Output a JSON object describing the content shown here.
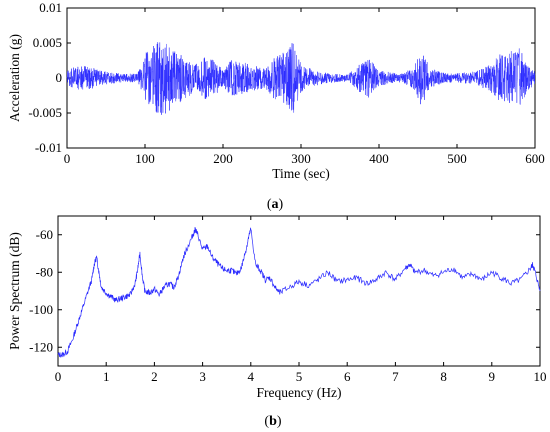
{
  "chart_data": [
    {
      "type": "line",
      "panel_label": "a",
      "xlabel": "Time (sec)",
      "ylabel": "Acceleration (g)",
      "xlim": [
        0,
        600
      ],
      "ylim": [
        -0.01,
        0.01
      ],
      "x_ticks": [
        0,
        100,
        200,
        300,
        400,
        500,
        600
      ],
      "y_ticks": [
        0.01,
        0.005,
        0,
        -0.005,
        -0.01
      ],
      "y_tick_labels": [
        "0.01",
        "0.005",
        "0",
        "-0.005",
        "-0.01"
      ],
      "color": "#2b2bff",
      "amplitude_envelope": {
        "x": [
          0,
          15,
          30,
          45,
          60,
          75,
          90,
          100,
          110,
          120,
          135,
          150,
          165,
          175,
          190,
          200,
          210,
          225,
          240,
          255,
          265,
          280,
          290,
          300,
          315,
          330,
          345,
          360,
          375,
          385,
          400,
          415,
          430,
          445,
          455,
          465,
          480,
          495,
          510,
          525,
          540,
          555,
          570,
          580,
          590,
          600
        ],
        "y": [
          0.0012,
          0.0018,
          0.0016,
          0.001,
          0.0008,
          0.0006,
          0.0006,
          0.0035,
          0.0045,
          0.0055,
          0.0045,
          0.003,
          0.002,
          0.0032,
          0.0025,
          0.0012,
          0.0026,
          0.0023,
          0.0018,
          0.0015,
          0.003,
          0.0038,
          0.0052,
          0.002,
          0.0012,
          0.0008,
          0.0006,
          0.0005,
          0.002,
          0.003,
          0.0012,
          0.0008,
          0.0006,
          0.0016,
          0.0042,
          0.0015,
          0.0008,
          0.0006,
          0.0008,
          0.001,
          0.0018,
          0.0035,
          0.004,
          0.0045,
          0.0018,
          0.001
        ]
      }
    },
    {
      "type": "line",
      "panel_label": "b",
      "xlabel": "Frequency (Hz)",
      "ylabel": "Power Spectrum (dB)",
      "xlim": [
        0,
        10
      ],
      "ylim": [
        -130,
        -50
      ],
      "x_ticks": [
        0,
        1,
        2,
        3,
        4,
        5,
        6,
        7,
        8,
        9,
        10
      ],
      "y_ticks": [
        -60,
        -80,
        -100,
        -120
      ],
      "color": "#2b2bff",
      "x": [
        0,
        0.1,
        0.2,
        0.3,
        0.4,
        0.5,
        0.6,
        0.7,
        0.75,
        0.8,
        0.85,
        0.9,
        1.0,
        1.1,
        1.2,
        1.3,
        1.4,
        1.5,
        1.6,
        1.65,
        1.7,
        1.75,
        1.8,
        1.9,
        2.0,
        2.1,
        2.2,
        2.3,
        2.4,
        2.5,
        2.6,
        2.7,
        2.8,
        2.85,
        2.9,
        3.0,
        3.1,
        3.2,
        3.3,
        3.4,
        3.5,
        3.6,
        3.7,
        3.8,
        3.9,
        3.95,
        4.0,
        4.1,
        4.2,
        4.3,
        4.4,
        4.5,
        4.6,
        4.8,
        5.0,
        5.2,
        5.4,
        5.6,
        5.8,
        6.0,
        6.2,
        6.4,
        6.6,
        6.8,
        7.0,
        7.2,
        7.3,
        7.4,
        7.6,
        7.8,
        8.0,
        8.2,
        8.4,
        8.6,
        8.8,
        9.0,
        9.2,
        9.4,
        9.6,
        9.8,
        9.85,
        9.9,
        10.0
      ],
      "y": [
        -124,
        -124,
        -122,
        -116,
        -108,
        -100,
        -92,
        -84,
        -76,
        -72,
        -80,
        -88,
        -91,
        -93,
        -95,
        -94,
        -93,
        -92,
        -86,
        -79,
        -70,
        -82,
        -90,
        -91,
        -89,
        -92,
        -88,
        -86,
        -88,
        -82,
        -72,
        -66,
        -60,
        -57,
        -60,
        -68,
        -66,
        -72,
        -75,
        -78,
        -79,
        -79,
        -81,
        -78,
        -68,
        -62,
        -57,
        -76,
        -79,
        -84,
        -83,
        -88,
        -91,
        -88,
        -85,
        -87,
        -84,
        -80,
        -85,
        -84,
        -83,
        -86,
        -84,
        -80,
        -84,
        -78,
        -76,
        -80,
        -79,
        -82,
        -80,
        -78,
        -83,
        -81,
        -84,
        -80,
        -83,
        -86,
        -84,
        -78,
        -76,
        -80,
        -90
      ]
    }
  ]
}
